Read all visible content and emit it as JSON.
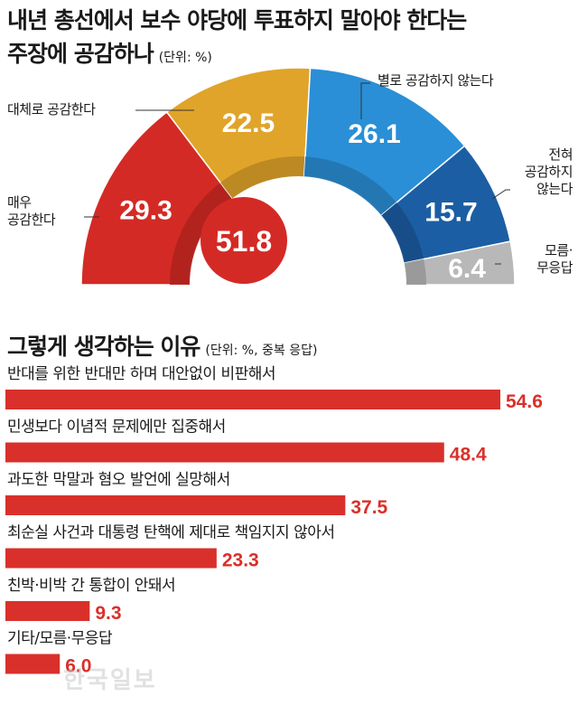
{
  "header": {
    "title_line1": "내년 총선에서 보수 야당에 투표하지 말아야 한다는",
    "title_line2": "주장에 공감하나",
    "unit": "(단위: %)"
  },
  "center_total": "51.8",
  "labels": {
    "largely_agree": "대체로 공감한다",
    "strongly_agree_1": "매우",
    "strongly_agree_2": "공감한다",
    "not_much": "별로 공감하지 않는다",
    "not_at_all_1": "전혀",
    "not_at_all_2": "공감하지",
    "not_at_all_3": "않는다",
    "dont_know_1": "모름·",
    "dont_know_2": "무응답"
  },
  "reasons_header": {
    "title": "그렇게 생각하는 이유",
    "unit": "(단위: %, 중복 응답)"
  },
  "watermark": "한국일보",
  "chart_data": [
    {
      "type": "pie",
      "title": "내년 총선에서 보수 야당에 투표하지 말아야 한다는 주장에 공감하나",
      "unit": "%",
      "center_total": 51.8,
      "slices": [
        {
          "label": "매우 공감한다",
          "value": 29.3,
          "color": "#d42a25"
        },
        {
          "label": "대체로 공감한다",
          "value": 22.5,
          "color": "#e0a42a"
        },
        {
          "label": "별로 공감하지 않는다",
          "value": 26.1,
          "color": "#2a8fd6"
        },
        {
          "label": "전혀 공감하지 않는다",
          "value": 15.7,
          "color": "#1c5ea3"
        },
        {
          "label": "모름·무응답",
          "value": 6.4,
          "color": "#b8b8b8"
        }
      ]
    },
    {
      "type": "bar",
      "title": "그렇게 생각하는 이유",
      "unit": "%",
      "orientation": "horizontal",
      "color": "#d9302b",
      "xlim": [
        0,
        54.6
      ],
      "categories": [
        "반대를 위한 반대만 하며 대안없이 비판해서",
        "민생보다 이념적 문제에만 집중해서",
        "과도한 막말과 혐오 발언에 실망해서",
        "최순실 사건과 대통령 탄핵에 제대로 책임지지 않아서",
        "친박·비박 간 통합이 안돼서",
        "기타/모름·무응답"
      ],
      "values": [
        54.6,
        48.4,
        37.5,
        23.3,
        9.3,
        6.0
      ],
      "value_labels": [
        "54.6",
        "48.4",
        "37.5",
        "23.3",
        "9.3",
        "6.0"
      ]
    }
  ]
}
